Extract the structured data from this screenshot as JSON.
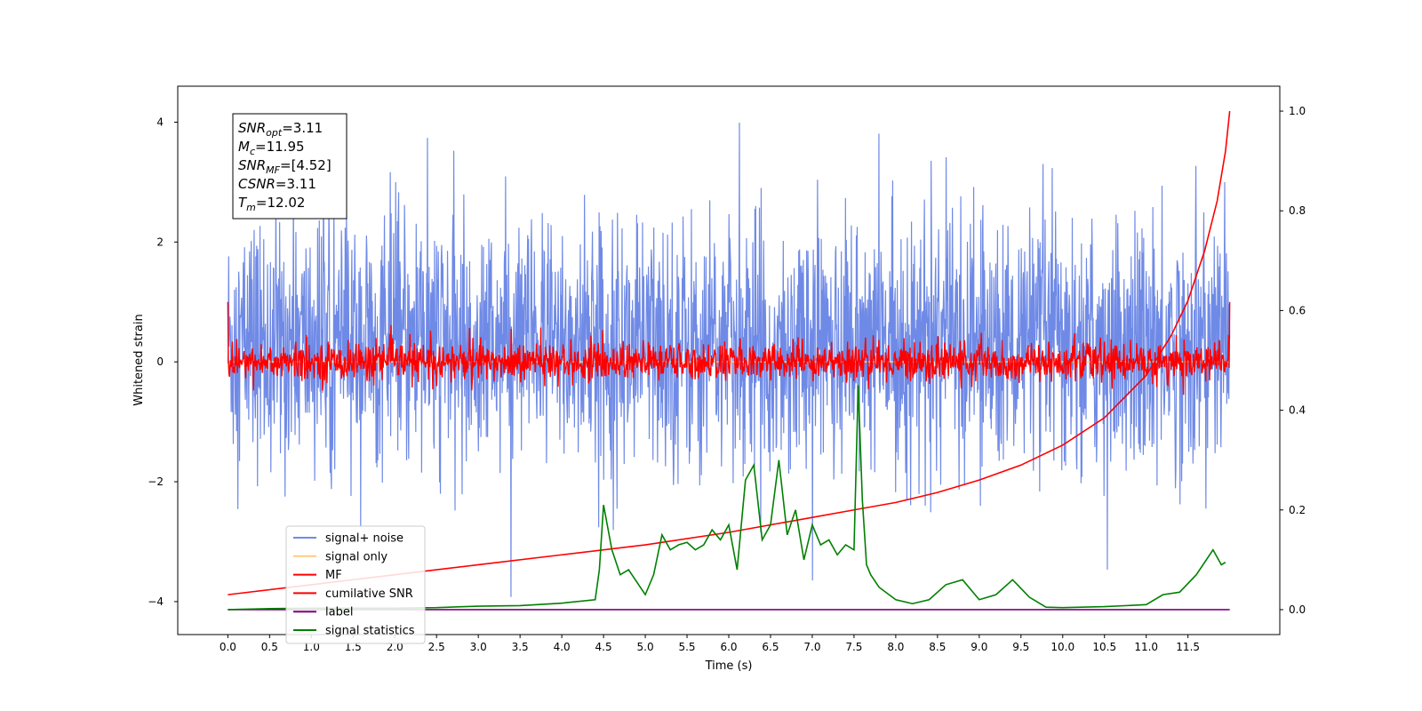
{
  "chart_data": {
    "type": "line",
    "xlabel": "Time (s)",
    "ylabel": "Whitened strain",
    "xlim": [
      -0.6,
      12.6
    ],
    "ylim": [
      -4.55,
      4.6
    ],
    "y2lim": [
      -0.05,
      1.05
    ],
    "x_ticks": [
      0.0,
      0.5,
      1.0,
      1.5,
      2.0,
      2.5,
      3.0,
      3.5,
      4.0,
      4.5,
      5.0,
      5.5,
      6.0,
      6.5,
      7.0,
      7.5,
      8.0,
      8.5,
      9.0,
      9.5,
      10.0,
      10.5,
      11.0,
      11.5
    ],
    "x_tick_labels": [
      "0.0",
      "0.5",
      "1.0",
      "1.5",
      "2.0",
      "2.5",
      "3.0",
      "3.5",
      "4.0",
      "4.5",
      "5.0",
      "5.5",
      "6.0",
      "6.5",
      "7.0",
      "7.5",
      "8.0",
      "8.5",
      "9.0",
      "9.5",
      "10.0",
      "10.5",
      "11.0",
      "11.5"
    ],
    "y_ticks": [
      -4,
      -2,
      0,
      2,
      4
    ],
    "y_tick_labels": [
      "−4",
      "−2",
      "0",
      "2",
      "4"
    ],
    "y2_ticks": [
      0.0,
      0.2,
      0.4,
      0.6,
      0.8,
      1.0
    ],
    "y2_tick_labels": [
      "0.0",
      "0.2",
      "0.4",
      "0.6",
      "0.8",
      "1.0"
    ],
    "grid": false,
    "legend_position": "lower-left",
    "annotation": {
      "lines": [
        {
          "base": "SNR",
          "sub": "opt",
          "value": "=3.11"
        },
        {
          "base": "M",
          "sub": "c",
          "value": "=11.95"
        },
        {
          "base": "SNR",
          "sub": "MF",
          "value": "=[4.52]"
        },
        {
          "base": "CSNR",
          "sub": "",
          "value": "=3.11"
        },
        {
          "base": "T",
          "sub": "m",
          "value": "=12.02"
        }
      ]
    },
    "series": [
      {
        "name": "signal+ noise",
        "color": "#6f8ae6",
        "axis": "left",
        "style": "noise",
        "x_range": [
          0.0,
          12.0
        ],
        "mean": 0.0,
        "typical_range": [
          -1.7,
          2.3
        ],
        "max": 4.17,
        "min": -4.12
      },
      {
        "name": "signal only",
        "color": "#ffcc80",
        "axis": "left",
        "style": "flat",
        "x_range": [
          0.0,
          12.0
        ],
        "value": 0.0
      },
      {
        "name": "MF",
        "color": "#ff0000",
        "axis": "left",
        "style": "noise",
        "x_range": [
          0.0,
          12.0
        ],
        "mean": 0.0,
        "typical_range": [
          -0.35,
          0.35
        ],
        "start": 1.0,
        "end": 1.0
      },
      {
        "name": "cumilative SNR",
        "color": "#ff0000",
        "axis": "right",
        "x": [
          0.0,
          1.0,
          2.0,
          3.0,
          4.0,
          5.0,
          6.0,
          7.0,
          7.5,
          8.0,
          8.5,
          9.0,
          9.5,
          10.0,
          10.5,
          11.0,
          11.3,
          11.5,
          11.7,
          11.85,
          11.95,
          12.0
        ],
        "values": [
          0.03,
          0.05,
          0.07,
          0.09,
          0.11,
          0.13,
          0.155,
          0.185,
          0.2,
          0.215,
          0.235,
          0.26,
          0.29,
          0.33,
          0.385,
          0.47,
          0.55,
          0.62,
          0.72,
          0.82,
          0.92,
          1.0
        ]
      },
      {
        "name": "label",
        "color": "#800080",
        "axis": "right",
        "x": [
          0.0,
          12.0
        ],
        "values": [
          0.0,
          0.0
        ]
      },
      {
        "name": "signal statistics",
        "color": "#008000",
        "axis": "right",
        "x": [
          0.0,
          0.5,
          1.0,
          1.5,
          2.0,
          2.5,
          3.0,
          3.5,
          4.0,
          4.4,
          4.45,
          4.5,
          4.6,
          4.7,
          4.8,
          5.0,
          5.1,
          5.2,
          5.3,
          5.4,
          5.5,
          5.6,
          5.7,
          5.8,
          5.9,
          6.0,
          6.1,
          6.2,
          6.3,
          6.4,
          6.5,
          6.6,
          6.7,
          6.8,
          6.9,
          7.0,
          7.1,
          7.2,
          7.3,
          7.4,
          7.5,
          7.55,
          7.6,
          7.65,
          7.7,
          7.8,
          8.0,
          8.2,
          8.4,
          8.6,
          8.8,
          9.0,
          9.2,
          9.4,
          9.6,
          9.8,
          10.0,
          10.5,
          11.0,
          11.2,
          11.4,
          11.6,
          11.8,
          11.9,
          11.95
        ],
        "values": [
          0.0,
          0.002,
          0.003,
          0.003,
          0.003,
          0.004,
          0.007,
          0.008,
          0.013,
          0.02,
          0.08,
          0.21,
          0.12,
          0.07,
          0.08,
          0.03,
          0.07,
          0.15,
          0.12,
          0.13,
          0.135,
          0.12,
          0.13,
          0.16,
          0.14,
          0.17,
          0.08,
          0.26,
          0.29,
          0.14,
          0.17,
          0.3,
          0.15,
          0.2,
          0.1,
          0.17,
          0.13,
          0.14,
          0.11,
          0.13,
          0.12,
          0.45,
          0.22,
          0.09,
          0.07,
          0.045,
          0.02,
          0.012,
          0.02,
          0.05,
          0.06,
          0.02,
          0.03,
          0.06,
          0.025,
          0.005,
          0.004,
          0.006,
          0.01,
          0.03,
          0.035,
          0.07,
          0.12,
          0.09,
          0.095
        ]
      }
    ]
  }
}
